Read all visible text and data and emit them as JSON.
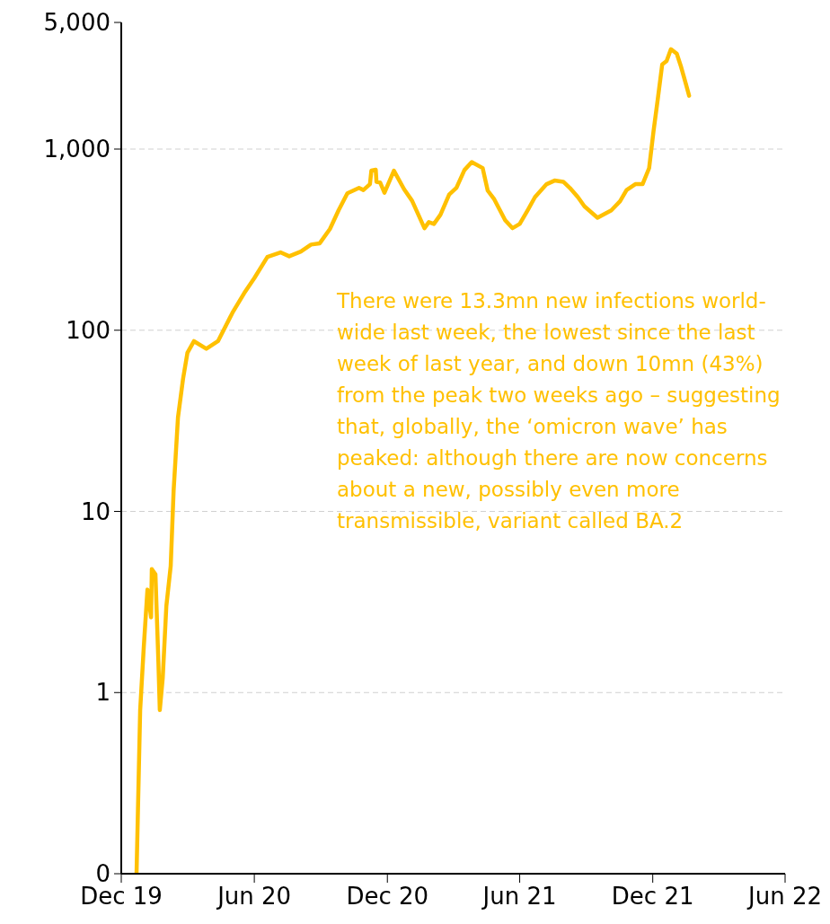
{
  "chart_data": {
    "type": "line",
    "x": [
      "2019-12-22",
      "2019-12-27",
      "2020-01-01",
      "2020-01-06",
      "2020-01-11",
      "2020-01-12",
      "2020-01-17",
      "2020-01-21",
      "2020-01-23",
      "2020-01-27",
      "2020-02-01",
      "2020-02-07",
      "2020-02-11",
      "2020-02-17",
      "2020-02-24",
      "2020-03-01",
      "2020-03-10",
      "2020-03-27",
      "2020-04-12",
      "2020-05-02",
      "2020-05-18",
      "2020-06-01",
      "2020-06-19",
      "2020-07-07",
      "2020-07-19",
      "2020-08-04",
      "2020-08-18",
      "2020-08-30",
      "2020-09-13",
      "2020-09-25",
      "2020-10-07",
      "2020-10-23",
      "2020-10-29",
      "2020-11-07",
      "2020-11-09",
      "2020-11-15",
      "2020-11-16",
      "2020-11-21",
      "2020-11-27",
      "2020-12-10",
      "2020-12-24",
      "2021-01-04",
      "2021-01-21",
      "2021-01-27",
      "2021-02-03",
      "2021-02-12",
      "2021-02-24",
      "2021-03-06",
      "2021-03-17",
      "2021-03-27",
      "2021-04-11",
      "2021-04-18",
      "2021-04-27",
      "2021-05-12",
      "2021-05-22",
      "2021-06-01",
      "2021-06-12",
      "2021-06-22",
      "2021-07-08",
      "2021-07-19",
      "2021-07-31",
      "2021-08-09",
      "2021-08-20",
      "2021-08-29",
      "2021-09-16",
      "2021-10-05",
      "2021-10-17",
      "2021-10-26",
      "2021-11-07",
      "2021-11-17",
      "2021-11-26",
      "2021-12-02",
      "2021-12-08",
      "2021-12-14",
      "2021-12-20",
      "2021-12-26",
      "2022-01-03",
      "2022-01-09",
      "2022-01-15",
      "2022-01-20"
    ],
    "series": [
      {
        "color": "#ffc000",
        "values": [
          0.1,
          0.8,
          1.8,
          3.7,
          2.6,
          4.8,
          4.5,
          1.5,
          0.8,
          1.2,
          3,
          5,
          13,
          33,
          54,
          75,
          87,
          79,
          87,
          125,
          160,
          194,
          254,
          269,
          256,
          272,
          297,
          302,
          362,
          460,
          570,
          610,
          594,
          640,
          761,
          770,
          660,
          654,
          574,
          760,
          600,
          518,
          366,
          395,
          386,
          434,
          561,
          611,
          766,
          848,
          786,
          590,
          528,
          405,
          366,
          386,
          460,
          543,
          640,
          670,
          660,
          610,
          543,
          483,
          418,
          459,
          515,
          594,
          640,
          640,
          785,
          1250,
          1900,
          2930,
          3060,
          3560,
          3360,
          2840,
          2330,
          1970
        ]
      }
    ],
    "log": "y",
    "ylim": [
      0.1,
      5000
    ],
    "yticks": [
      {
        "value": 0.1,
        "label": "0"
      },
      {
        "value": 1,
        "label": "1"
      },
      {
        "value": 10,
        "label": "10"
      },
      {
        "value": 100,
        "label": "100"
      },
      {
        "value": 1000,
        "label": "1,000"
      },
      {
        "value": 5000,
        "label": "5,000"
      }
    ],
    "xlim": [
      "2019-12-01",
      "2022-06-01"
    ],
    "xticks": [
      {
        "value": "2019-12-01",
        "label": "Dec 19"
      },
      {
        "value": "2020-06-01",
        "label": "Jun 20"
      },
      {
        "value": "2020-12-01",
        "label": "Dec 20"
      },
      {
        "value": "2021-06-01",
        "label": "Jun 21"
      },
      {
        "value": "2021-12-01",
        "label": "Dec 21"
      },
      {
        "value": "2022-06-01",
        "label": "Jun 22"
      }
    ],
    "grid": "y",
    "legend": false,
    "marker": "none",
    "line_style": "solid",
    "annotations": [
      "There were 13.3mn new infections world-wide last week, the lowest since the last week of last year, and down 10mn (43%) from the peak two weeks ago – suggesting that, globally, the ‘omicron wave’ has peaked: although there are now concerns about a new, possibly even more transmissible, variant called BA.2"
    ]
  }
}
